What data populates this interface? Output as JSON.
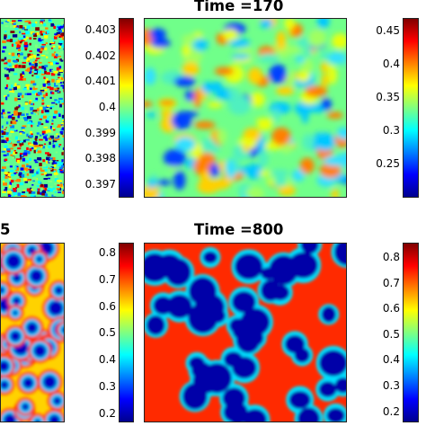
{
  "colormap": [
    "#00008f",
    "#0000ff",
    "#0080ff",
    "#00ffff",
    "#80ff80",
    "#ffff00",
    "#ff8000",
    "#ff0000",
    "#800000"
  ],
  "chart_data": [
    {
      "type": "heatmap",
      "panel": "top-left",
      "title": "",
      "colorbar_ticks": [],
      "pattern": "fine-noise"
    },
    {
      "type": "heatmap",
      "panel": "top-middle",
      "title": "Time =170",
      "colorbar_ticks": [
        "0.403",
        "0.402",
        "0.401",
        "0.4",
        "0.399",
        "0.398",
        "0.397"
      ],
      "colorbar_range": [
        0.3965,
        0.4035
      ],
      "pattern": "smooth-blobs"
    },
    {
      "type": "heatmap",
      "panel": "top-right",
      "title": "",
      "colorbar_ticks": [
        "0.45",
        "0.4",
        "0.35",
        "0.3",
        "0.25"
      ],
      "colorbar_range": [
        0.2,
        0.47
      ],
      "pattern": "none"
    },
    {
      "type": "heatmap",
      "panel": "bottom-left",
      "title": "5",
      "colorbar_ticks": [],
      "pattern": "cells-forming"
    },
    {
      "type": "heatmap",
      "panel": "bottom-middle",
      "title": "Time =800",
      "colorbar_ticks": [
        "0.8",
        "0.7",
        "0.6",
        "0.5",
        "0.4",
        "0.3",
        "0.2"
      ],
      "colorbar_range": [
        0.17,
        0.84
      ],
      "pattern": "blue-cells-red-walls"
    },
    {
      "type": "heatmap",
      "panel": "bottom-right",
      "title": "",
      "colorbar_ticks": [
        "0.8",
        "0.7",
        "0.6",
        "0.5",
        "0.4",
        "0.3",
        "0.2"
      ],
      "colorbar_range": [
        0.16,
        0.86
      ],
      "pattern": "none"
    }
  ]
}
